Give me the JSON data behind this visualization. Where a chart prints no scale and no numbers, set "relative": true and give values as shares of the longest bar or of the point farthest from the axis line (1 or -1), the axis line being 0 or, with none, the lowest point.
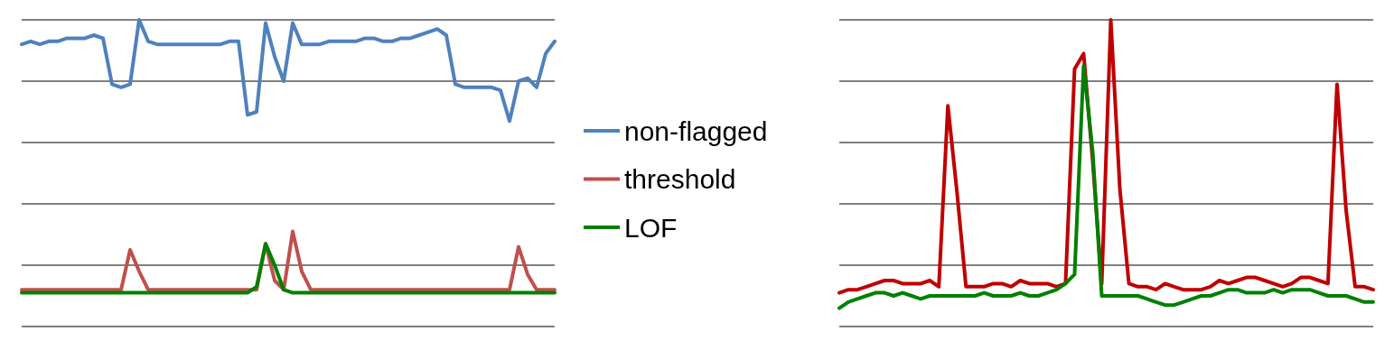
{
  "chart_data": [
    {
      "type": "line",
      "relative": true,
      "grid": true,
      "legend": "right",
      "categories": [
        null,
        null,
        null,
        null,
        null,
        null,
        null,
        null,
        null,
        null,
        null,
        null,
        null,
        null,
        null,
        null,
        null,
        null,
        null,
        null,
        null,
        null,
        null,
        null,
        null,
        null,
        null,
        null,
        null,
        null,
        null,
        null,
        null,
        null,
        null,
        null,
        null,
        null,
        null,
        null,
        null,
        null,
        null,
        null,
        null,
        null,
        null,
        null,
        null,
        null,
        null,
        null,
        null,
        null,
        null,
        null,
        null,
        null,
        null,
        null
      ],
      "series": [
        {
          "name": "non-flagged",
          "color": "#4f81bd",
          "values": [
            0.92,
            0.93,
            0.92,
            0.93,
            0.93,
            0.94,
            0.94,
            0.94,
            0.95,
            0.94,
            0.79,
            0.78,
            0.79,
            1.0,
            0.93,
            0.92,
            0.92,
            0.92,
            0.92,
            0.92,
            0.92,
            0.92,
            0.92,
            0.93,
            0.93,
            0.69,
            0.7,
            0.99,
            0.88,
            0.8,
            0.99,
            0.92,
            0.92,
            0.92,
            0.93,
            0.93,
            0.93,
            0.93,
            0.94,
            0.94,
            0.93,
            0.93,
            0.94,
            0.94,
            0.95,
            0.96,
            0.97,
            0.95,
            0.79,
            0.78,
            0.78,
            0.78,
            0.78,
            0.77,
            0.67,
            0.8,
            0.81,
            0.78,
            0.89,
            0.93
          ]
        },
        {
          "name": "threshold",
          "color": "#c0504d",
          "values": [
            0.12,
            0.12,
            0.12,
            0.12,
            0.12,
            0.12,
            0.12,
            0.12,
            0.12,
            0.12,
            0.12,
            0.12,
            0.25,
            0.18,
            0.12,
            0.12,
            0.12,
            0.12,
            0.12,
            0.12,
            0.12,
            0.12,
            0.12,
            0.12,
            0.12,
            0.12,
            0.12,
            0.27,
            0.15,
            0.12,
            0.31,
            0.18,
            0.12,
            0.12,
            0.12,
            0.12,
            0.12,
            0.12,
            0.12,
            0.12,
            0.12,
            0.12,
            0.12,
            0.12,
            0.12,
            0.12,
            0.12,
            0.12,
            0.12,
            0.12,
            0.12,
            0.12,
            0.12,
            0.12,
            0.12,
            0.26,
            0.17,
            0.12,
            0.12,
            0.12
          ]
        },
        {
          "name": "LOF",
          "color": "#008000",
          "values": [
            0.11,
            0.11,
            0.11,
            0.11,
            0.11,
            0.11,
            0.11,
            0.11,
            0.11,
            0.11,
            0.11,
            0.11,
            0.11,
            0.11,
            0.11,
            0.11,
            0.11,
            0.11,
            0.11,
            0.11,
            0.11,
            0.11,
            0.11,
            0.11,
            0.11,
            0.11,
            0.13,
            0.27,
            0.2,
            0.12,
            0.11,
            0.11,
            0.11,
            0.11,
            0.11,
            0.11,
            0.11,
            0.11,
            0.11,
            0.11,
            0.11,
            0.11,
            0.11,
            0.11,
            0.11,
            0.11,
            0.11,
            0.11,
            0.11,
            0.11,
            0.11,
            0.11,
            0.11,
            0.11,
            0.11,
            0.11,
            0.11,
            0.11,
            0.11,
            0.11
          ]
        }
      ]
    },
    {
      "type": "line",
      "relative": true,
      "grid": true,
      "categories": [
        null,
        null,
        null,
        null,
        null,
        null,
        null,
        null,
        null,
        null,
        null,
        null,
        null,
        null,
        null,
        null,
        null,
        null,
        null,
        null,
        null,
        null,
        null,
        null,
        null,
        null,
        null,
        null,
        null,
        null,
        null,
        null,
        null,
        null,
        null,
        null,
        null,
        null,
        null,
        null,
        null,
        null,
        null,
        null,
        null,
        null,
        null,
        null,
        null,
        null,
        null,
        null,
        null,
        null,
        null,
        null,
        null,
        null,
        null,
        null
      ],
      "series": [
        {
          "color": "#c00000",
          "values": [
            0.11,
            0.12,
            0.12,
            0.13,
            0.14,
            0.15,
            0.15,
            0.14,
            0.14,
            0.14,
            0.15,
            0.13,
            0.72,
            0.44,
            0.13,
            0.13,
            0.13,
            0.14,
            0.14,
            0.13,
            0.15,
            0.14,
            0.14,
            0.14,
            0.13,
            0.14,
            0.84,
            0.89,
            0.54,
            0.14,
            1.0,
            0.45,
            0.14,
            0.13,
            0.13,
            0.12,
            0.14,
            0.13,
            0.12,
            0.12,
            0.12,
            0.13,
            0.15,
            0.14,
            0.15,
            0.16,
            0.16,
            0.15,
            0.14,
            0.13,
            0.14,
            0.16,
            0.16,
            0.15,
            0.14,
            0.79,
            0.38,
            0.13,
            0.13,
            0.12
          ]
        },
        {
          "color": "#008000",
          "values": [
            0.06,
            0.08,
            0.09,
            0.1,
            0.11,
            0.11,
            0.1,
            0.11,
            0.1,
            0.09,
            0.1,
            0.1,
            0.1,
            0.1,
            0.1,
            0.1,
            0.11,
            0.1,
            0.1,
            0.1,
            0.11,
            0.1,
            0.1,
            0.11,
            0.12,
            0.14,
            0.17,
            0.85,
            0.57,
            0.1,
            0.1,
            0.1,
            0.1,
            0.1,
            0.09,
            0.08,
            0.07,
            0.07,
            0.08,
            0.09,
            0.1,
            0.1,
            0.11,
            0.12,
            0.12,
            0.11,
            0.11,
            0.11,
            0.12,
            0.11,
            0.12,
            0.12,
            0.12,
            0.11,
            0.1,
            0.1,
            0.1,
            0.09,
            0.08,
            0.08
          ]
        }
      ]
    }
  ]
}
